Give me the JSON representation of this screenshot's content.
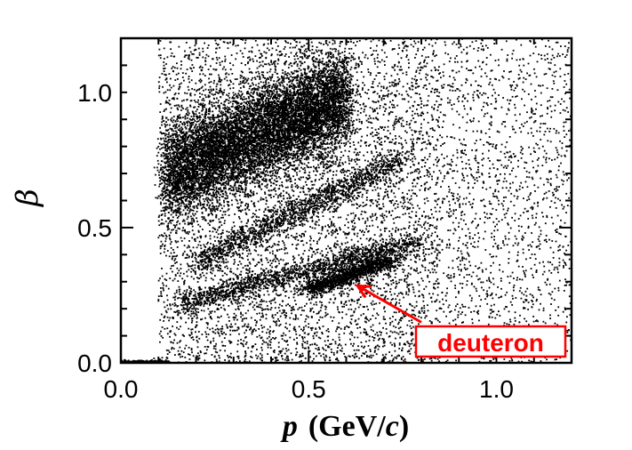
{
  "chart_data": {
    "type": "scatter",
    "xlabel_var": "p",
    "xlabel_unit_open": "(GeV/",
    "xlabel_unit_var": "c",
    "xlabel_unit_close": ")",
    "ylabel": "β",
    "xlim": [
      0.0,
      1.2
    ],
    "ylim": [
      0.0,
      1.2
    ],
    "x_ticks": [
      {
        "value": 0.0,
        "label": "0.0"
      },
      {
        "value": 0.5,
        "label": "0.5"
      },
      {
        "value": 1.0,
        "label": "1.0"
      }
    ],
    "y_ticks": [
      {
        "value": 0.0,
        "label": "0.0"
      },
      {
        "value": 0.5,
        "label": "0.5"
      },
      {
        "value": 1.0,
        "label": "1.0"
      }
    ],
    "grid": false,
    "marker_color": "#000000",
    "bands": [
      {
        "x": [
          0.12,
          0.6
        ],
        "y_at_x": [
          0.7,
          0.98
        ],
        "width": 0.18,
        "density": "high"
      },
      {
        "x": [
          0.2,
          0.75
        ],
        "y_at_x": [
          0.37,
          0.75
        ],
        "width": 0.05,
        "density": "medium"
      },
      {
        "x": [
          0.16,
          0.8
        ],
        "y_at_x": [
          0.22,
          0.45
        ],
        "width": 0.04,
        "density": "medium"
      },
      {
        "x": [
          0.5,
          0.72
        ],
        "y_at_x": [
          0.27,
          0.38
        ],
        "width": 0.03,
        "density": "medium"
      }
    ],
    "zero_beta_band": {
      "x": [
        0.0,
        0.13
      ],
      "y": 0.0
    },
    "background_region": {
      "x": [
        0.1,
        1.2
      ],
      "y": [
        0.0,
        1.2
      ],
      "density": "medium"
    },
    "annotation": {
      "text": "deuteron",
      "color": "#ff0000",
      "arrow_tip": {
        "x": 0.63,
        "y": 0.285
      },
      "arrow_tail": {
        "x": 0.8,
        "y": 0.15
      }
    }
  }
}
